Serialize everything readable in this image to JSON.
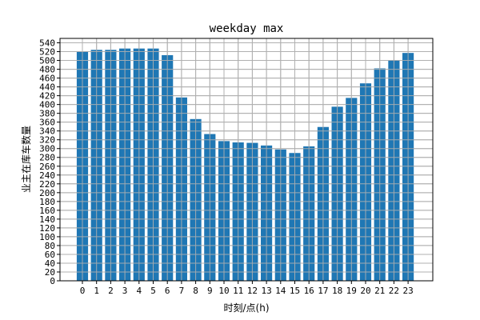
{
  "chart_data": {
    "type": "bar",
    "title": "weekday max",
    "xlabel": "时刻/点(h)",
    "ylabel": "业主在库车数量",
    "categories": [
      "0",
      "1",
      "2",
      "3",
      "4",
      "5",
      "6",
      "7",
      "8",
      "9",
      "10",
      "11",
      "12",
      "13",
      "14",
      "15",
      "16",
      "17",
      "18",
      "19",
      "20",
      "21",
      "22",
      "23"
    ],
    "values": [
      520,
      524,
      524,
      527,
      527,
      527,
      512,
      416,
      367,
      333,
      317,
      314,
      313,
      307,
      298,
      290,
      305,
      349,
      395,
      415,
      448,
      482,
      501,
      517
    ],
    "ylim": [
      0,
      550
    ],
    "yticks": [
      0,
      20,
      40,
      60,
      80,
      100,
      120,
      140,
      160,
      180,
      200,
      220,
      240,
      260,
      280,
      300,
      320,
      340,
      360,
      380,
      400,
      420,
      440,
      460,
      480,
      500,
      520,
      540
    ],
    "grid": true,
    "bar_color": "#1f77b4"
  }
}
